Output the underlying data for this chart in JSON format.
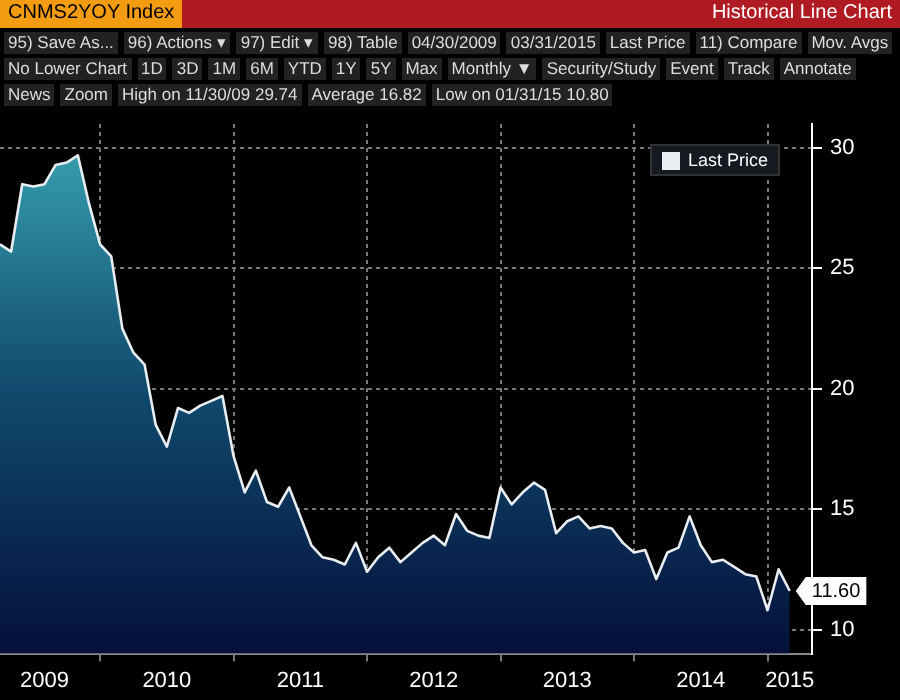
{
  "chart_data": {
    "type": "area",
    "title": "CNMS2YOY Index",
    "subtitle": "Historical Line Chart",
    "annotations": [
      "95) Save As...",
      "96) Actions ▾",
      "97) Edit ▾",
      "98) Table",
      "04/30/2009",
      "03/31/2015",
      "Last Price",
      "11) Compare",
      "Mov. Avgs",
      "No Lower Chart",
      "1D",
      "3D",
      "1M",
      "6M",
      "YTD",
      "1Y",
      "5Y",
      "Max",
      "Monthly ▼",
      "Security/Study",
      "Event",
      "Track",
      "Annotate",
      "News",
      "Zoom",
      "High on 11/30/09 29.74",
      "Average 16.82",
      "Low on 01/31/15 10.80"
    ],
    "x": [
      "2009-04",
      "2009-05",
      "2009-06",
      "2009-07",
      "2009-08",
      "2009-09",
      "2009-10",
      "2009-11",
      "2009-12",
      "2010-01",
      "2010-02",
      "2010-03",
      "2010-04",
      "2010-05",
      "2010-06",
      "2010-07",
      "2010-08",
      "2010-09",
      "2010-10",
      "2010-11",
      "2010-12",
      "2011-01",
      "2011-02",
      "2011-03",
      "2011-04",
      "2011-05",
      "2011-06",
      "2011-07",
      "2011-08",
      "2011-09",
      "2011-10",
      "2011-11",
      "2011-12",
      "2012-01",
      "2012-02",
      "2012-03",
      "2012-04",
      "2012-05",
      "2012-06",
      "2012-07",
      "2012-08",
      "2012-09",
      "2012-10",
      "2012-11",
      "2012-12",
      "2013-01",
      "2013-02",
      "2013-03",
      "2013-04",
      "2013-05",
      "2013-06",
      "2013-07",
      "2013-08",
      "2013-09",
      "2013-10",
      "2013-11",
      "2013-12",
      "2014-01",
      "2014-02",
      "2014-03",
      "2014-04",
      "2014-05",
      "2014-06",
      "2014-07",
      "2014-08",
      "2014-09",
      "2014-10",
      "2014-11",
      "2014-12",
      "2015-01",
      "2015-02",
      "2015-03"
    ],
    "series": [
      {
        "name": "Last Price",
        "color": "#e8eef2",
        "values": [
          26.0,
          25.7,
          28.5,
          28.4,
          28.5,
          29.3,
          29.4,
          29.7,
          27.7,
          26.0,
          25.5,
          22.5,
          21.5,
          21.0,
          18.5,
          17.6,
          19.2,
          19.0,
          19.3,
          19.5,
          19.7,
          17.2,
          15.7,
          16.6,
          15.3,
          15.1,
          15.9,
          14.7,
          13.5,
          13.0,
          12.9,
          12.7,
          13.6,
          12.4,
          13.0,
          13.4,
          12.8,
          13.2,
          13.6,
          13.9,
          13.5,
          14.8,
          14.1,
          13.9,
          13.8,
          15.9,
          15.2,
          15.7,
          16.1,
          15.8,
          14.0,
          14.5,
          14.7,
          14.2,
          14.3,
          14.2,
          13.6,
          13.2,
          13.3,
          12.1,
          13.2,
          13.4,
          14.7,
          13.5,
          12.8,
          12.9,
          12.6,
          12.3,
          12.2,
          10.8,
          12.5,
          11.6
        ],
        "value_labels": [
          null,
          null,
          null,
          null,
          null,
          null,
          null,
          null,
          null,
          null,
          null,
          null,
          null,
          null,
          null,
          null,
          null,
          null,
          null,
          null,
          null,
          null,
          null,
          null,
          null,
          null,
          null,
          null,
          null,
          null,
          null,
          null,
          null,
          null,
          null,
          null,
          null,
          null,
          null,
          null,
          null,
          null,
          null,
          null,
          null,
          null,
          null,
          null,
          null,
          null,
          null,
          null,
          null,
          null,
          null,
          null,
          null,
          null,
          null,
          null,
          null,
          null,
          null,
          null,
          null,
          null,
          null,
          null,
          null,
          null,
          null,
          "11.60"
        ]
      }
    ],
    "xlim": [
      "2009-04",
      "2015-05"
    ],
    "xticks": [
      {
        "value": "2009-08",
        "label": "2009"
      },
      {
        "value": "2010-01",
        "label": null
      },
      {
        "value": "2010-07",
        "label": "2010"
      },
      {
        "value": "2011-01",
        "label": null
      },
      {
        "value": "2011-07",
        "label": "2011"
      },
      {
        "value": "2012-01",
        "label": null
      },
      {
        "value": "2012-07",
        "label": "2012"
      },
      {
        "value": "2013-01",
        "label": null
      },
      {
        "value": "2013-07",
        "label": "2013"
      },
      {
        "value": "2014-01",
        "label": null
      },
      {
        "value": "2014-07",
        "label": "2014"
      },
      {
        "value": "2015-01",
        "label": null
      },
      {
        "value": "2015-03",
        "label": "2015"
      }
    ],
    "ylim": [
      9,
      31
    ],
    "yticks": [
      10,
      15,
      20,
      25,
      30
    ],
    "grid": true,
    "legend": "top right"
  }
}
